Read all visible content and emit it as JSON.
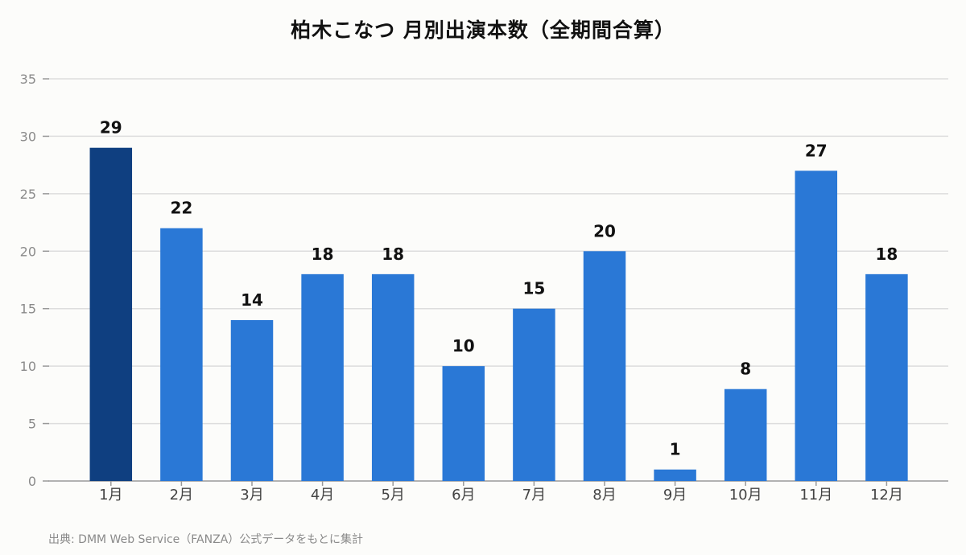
{
  "title": "柏木こなつ 月別出演本数（全期間合算）",
  "source": "出典: DMM Web Service（FANZA）公式データをもとに集計",
  "colors": {
    "bar": "#2a78d6",
    "bar_highlight": "#0f3f80",
    "grid": "#dddddd",
    "axis": "#999999"
  },
  "chart_data": {
    "type": "bar",
    "categories": [
      "1月",
      "2月",
      "3月",
      "4月",
      "5月",
      "6月",
      "7月",
      "8月",
      "9月",
      "10月",
      "11月",
      "12月"
    ],
    "values": [
      29,
      22,
      14,
      18,
      18,
      10,
      15,
      20,
      1,
      8,
      27,
      18
    ],
    "highlight_index": 0,
    "ylim": [
      0,
      35
    ],
    "yticks": [
      0,
      5,
      10,
      15,
      20,
      25,
      30,
      35
    ],
    "grid": true,
    "xlabel": "",
    "ylabel": ""
  }
}
